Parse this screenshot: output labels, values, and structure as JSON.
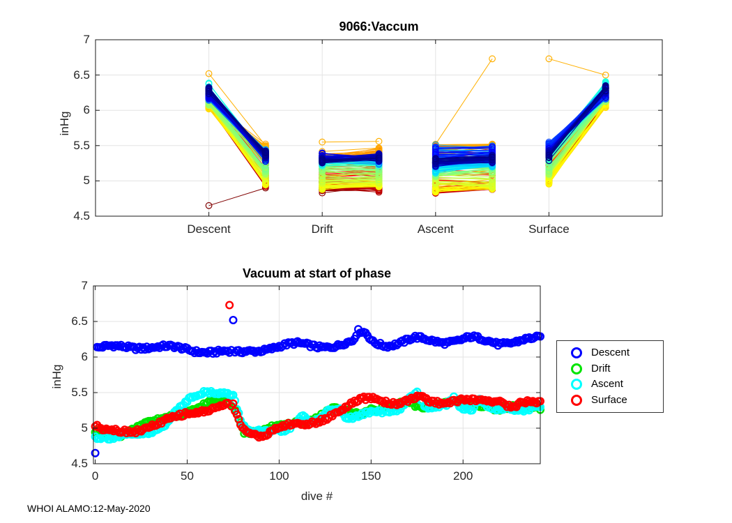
{
  "figure": {
    "background": "#ffffff",
    "watermark": "WHOI ALAMO:12-May-2020"
  },
  "trends": {
    "descent": [
      [
        0,
        6.12
      ],
      [
        15,
        6.12
      ],
      [
        30,
        6.13
      ],
      [
        45,
        6.12
      ],
      [
        60,
        6.11
      ],
      [
        70,
        6.09
      ],
      [
        78,
        6.06
      ],
      [
        84,
        6.09
      ],
      [
        95,
        6.12
      ],
      [
        110,
        6.15
      ],
      [
        122,
        6.15
      ],
      [
        132,
        6.17
      ],
      [
        140,
        6.22
      ],
      [
        143,
        6.36
      ],
      [
        147,
        6.35
      ],
      [
        151,
        6.24
      ],
      [
        158,
        6.2
      ],
      [
        166,
        6.21
      ],
      [
        174,
        6.25
      ],
      [
        181,
        6.22
      ],
      [
        189,
        6.2
      ],
      [
        197,
        6.22
      ],
      [
        204,
        6.25
      ],
      [
        211,
        6.22
      ],
      [
        219,
        6.2
      ],
      [
        226,
        6.24
      ],
      [
        233,
        6.27
      ],
      [
        242,
        6.27
      ]
    ],
    "drift": [
      [
        0,
        4.91
      ],
      [
        14,
        4.9
      ],
      [
        27,
        5.03
      ],
      [
        35,
        5.12
      ],
      [
        44,
        5.22
      ],
      [
        54,
        5.29
      ],
      [
        64,
        5.37
      ],
      [
        71,
        5.41
      ],
      [
        76,
        5.3
      ],
      [
        81,
        4.96
      ],
      [
        90,
        4.91
      ],
      [
        100,
        5.0
      ],
      [
        110,
        5.09
      ],
      [
        120,
        5.15
      ],
      [
        130,
        5.27
      ],
      [
        140,
        5.24
      ],
      [
        150,
        5.29
      ],
      [
        160,
        5.27
      ],
      [
        170,
        5.34
      ],
      [
        180,
        5.29
      ],
      [
        190,
        5.34
      ],
      [
        200,
        5.34
      ],
      [
        210,
        5.34
      ],
      [
        220,
        5.3
      ],
      [
        230,
        5.3
      ],
      [
        242,
        5.3
      ]
    ],
    "ascent": [
      [
        0,
        4.88
      ],
      [
        10,
        4.86
      ],
      [
        20,
        4.88
      ],
      [
        30,
        4.96
      ],
      [
        38,
        5.1
      ],
      [
        45,
        5.28
      ],
      [
        52,
        5.42
      ],
      [
        58,
        5.49
      ],
      [
        65,
        5.52
      ],
      [
        71,
        5.5
      ],
      [
        75,
        5.44
      ],
      [
        80,
        5.0
      ],
      [
        85,
        4.9
      ],
      [
        91,
        4.92
      ],
      [
        97,
        4.96
      ],
      [
        103,
        5.0
      ],
      [
        109,
        5.08
      ],
      [
        113,
        5.18
      ],
      [
        117,
        5.08
      ],
      [
        123,
        5.14
      ],
      [
        128,
        5.3
      ],
      [
        132,
        5.33
      ],
      [
        136,
        5.2
      ],
      [
        142,
        5.17
      ],
      [
        148,
        5.2
      ],
      [
        154,
        5.19
      ],
      [
        160,
        5.21
      ],
      [
        166,
        5.26
      ],
      [
        171,
        5.44
      ],
      [
        175,
        5.48
      ],
      [
        180,
        5.25
      ],
      [
        186,
        5.27
      ],
      [
        191,
        5.32
      ],
      [
        195,
        5.44
      ],
      [
        200,
        5.3
      ],
      [
        205,
        5.31
      ],
      [
        209,
        5.44
      ],
      [
        214,
        5.3
      ],
      [
        220,
        5.25
      ],
      [
        226,
        5.29
      ],
      [
        232,
        5.27
      ],
      [
        238,
        5.31
      ],
      [
        242,
        5.29
      ]
    ],
    "surface": [
      [
        0,
        5.02
      ],
      [
        4,
        4.97
      ],
      [
        12,
        4.96
      ],
      [
        20,
        4.99
      ],
      [
        28,
        5.04
      ],
      [
        36,
        5.08
      ],
      [
        44,
        5.15
      ],
      [
        50,
        5.21
      ],
      [
        57,
        5.24
      ],
      [
        64,
        5.26
      ],
      [
        71,
        5.29
      ],
      [
        75,
        5.28
      ],
      [
        79,
        5.02
      ],
      [
        83,
        4.93
      ],
      [
        89,
        4.91
      ],
      [
        95,
        4.96
      ],
      [
        101,
        5.03
      ],
      [
        108,
        5.05
      ],
      [
        114,
        5.07
      ],
      [
        121,
        5.13
      ],
      [
        127,
        5.19
      ],
      [
        133,
        5.24
      ],
      [
        139,
        5.3
      ],
      [
        145,
        5.38
      ],
      [
        151,
        5.42
      ],
      [
        157,
        5.38
      ],
      [
        163,
        5.33
      ],
      [
        170,
        5.36
      ],
      [
        176,
        5.42
      ],
      [
        183,
        5.38
      ],
      [
        191,
        5.41
      ],
      [
        199,
        5.42
      ],
      [
        207,
        5.38
      ],
      [
        214,
        5.4
      ],
      [
        221,
        5.38
      ],
      [
        227,
        5.31
      ],
      [
        233,
        5.35
      ],
      [
        242,
        5.31
      ]
    ]
  },
  "chart_data": [
    {
      "id": "phase-profile",
      "type": "line",
      "title": "9066:Vaccum",
      "ylabel": "inHg",
      "ylim": [
        4.5,
        7
      ],
      "yticks": [
        4.5,
        5,
        5.5,
        6,
        6.5,
        7
      ],
      "xlim": [
        0,
        5
      ],
      "xticks": [
        1,
        2,
        3,
        4
      ],
      "xticklabels": [
        "Descent",
        "Drift",
        "Ascent",
        "Surface"
      ],
      "grid": true,
      "colormap": "jet-flipped (dive 0 = dark red, dive 242 = dark blue)",
      "n_dives": 243,
      "jitter": 0.08,
      "description": "One line per dive per phase connecting vacuum at start (x=phase) and end (x=phase+0.5) of each phase.",
      "columns": [
        {
          "phase": "Descent",
          "x_start": 1,
          "x_end": 1.5,
          "start_trend": "descent",
          "start_offset": 0,
          "end_trend": "drift",
          "end_offset": 0.05,
          "start_clamp": [
            6.02,
            6.44
          ],
          "end_clamp": [
            4.84,
            5.55
          ]
        },
        {
          "phase": "Drift",
          "x_start": 2,
          "x_end": 2.5,
          "start_trend": "drift",
          "start_offset": 0,
          "end_trend": "drift",
          "end_offset": 0.01,
          "start_clamp": [
            4.83,
            5.57
          ],
          "end_clamp": [
            4.83,
            5.58
          ]
        },
        {
          "phase": "Ascent",
          "x_start": 3,
          "x_end": 3.5,
          "start_trend": "ascent",
          "start_offset": -0.01,
          "end_trend": "ascent",
          "end_offset": 0.02,
          "start_clamp": [
            4.8,
            5.56
          ],
          "end_clamp": [
            4.88,
            5.52
          ]
        },
        {
          "phase": "Surface",
          "x_start": 4,
          "x_end": 4.5,
          "start_trend": "surface",
          "start_offset": 0.06,
          "end_trend": "descent",
          "end_offset": 0.02,
          "start_clamp": [
            4.95,
            5.6
          ],
          "end_clamp": [
            6.04,
            6.42
          ]
        }
      ],
      "outliers": [
        {
          "dive": 0,
          "values": {
            "descent": [
              4.65,
              4.9
            ]
          }
        },
        {
          "dive": 72,
          "values": {
            "descent": [
              6.52,
              5.5
            ],
            "drift": [
              5.55,
              5.56
            ],
            "ascent": [
              5.52,
              6.73
            ],
            "surface": [
              6.73,
              6.5
            ]
          }
        }
      ]
    },
    {
      "id": "start-of-phase",
      "type": "scatter",
      "title": "Vacuum at start of phase",
      "xlabel": "dive #",
      "ylabel": "inHg",
      "xlim": [
        -1,
        242
      ],
      "ylim": [
        4.5,
        7
      ],
      "xticks": [
        0,
        50,
        100,
        150,
        200
      ],
      "yticks": [
        4.5,
        5,
        5.5,
        6,
        6.5,
        7
      ],
      "grid": true,
      "marker": "hollow-circle",
      "jitter": 0.05,
      "series": [
        {
          "name": "Descent",
          "color": "#0000ff",
          "trend_key": "descent",
          "outliers": [
            [
              0,
              4.65
            ],
            [
              75,
              6.52
            ]
          ]
        },
        {
          "name": "Drift",
          "color": "#00e400",
          "trend_key": "drift",
          "outliers": []
        },
        {
          "name": "Ascent",
          "color": "#00ffff",
          "trend_key": "ascent",
          "outliers": []
        },
        {
          "name": "Surface",
          "color": "#ff0000",
          "trend_key": "surface",
          "outliers": [
            [
              73,
              6.73
            ]
          ]
        }
      ],
      "legend": {
        "position": "right-outside",
        "labels": [
          "Descent",
          "Drift",
          "Ascent",
          "Surface"
        ]
      }
    }
  ]
}
